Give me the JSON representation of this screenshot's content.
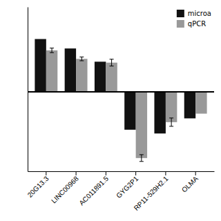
{
  "chart_data": {
    "type": "bar",
    "categories": [
      "20G13.3",
      "LINC00968",
      "AC011891.5",
      "GYG2P1",
      "RP11-529H2.1",
      "OLMA"
    ],
    "series": [
      {
        "name": "microa",
        "color": "#111111",
        "values": [
          2.8,
          2.3,
          1.6,
          -2.0,
          -2.2,
          -1.4
        ],
        "errors": [
          0.0,
          0.0,
          0.0,
          0.0,
          0.0,
          0.0
        ]
      },
      {
        "name": "qPCR",
        "color": "#999999",
        "values": [
          2.2,
          1.75,
          1.55,
          -3.5,
          -1.6,
          -1.15
        ],
        "errors": [
          0.12,
          0.1,
          0.18,
          0.18,
          0.22,
          0.0
        ]
      }
    ],
    "ylim": [
      -4.2,
      4.5
    ],
    "yticks": [],
    "legend": "upper right",
    "tick_labels": "x"
  }
}
